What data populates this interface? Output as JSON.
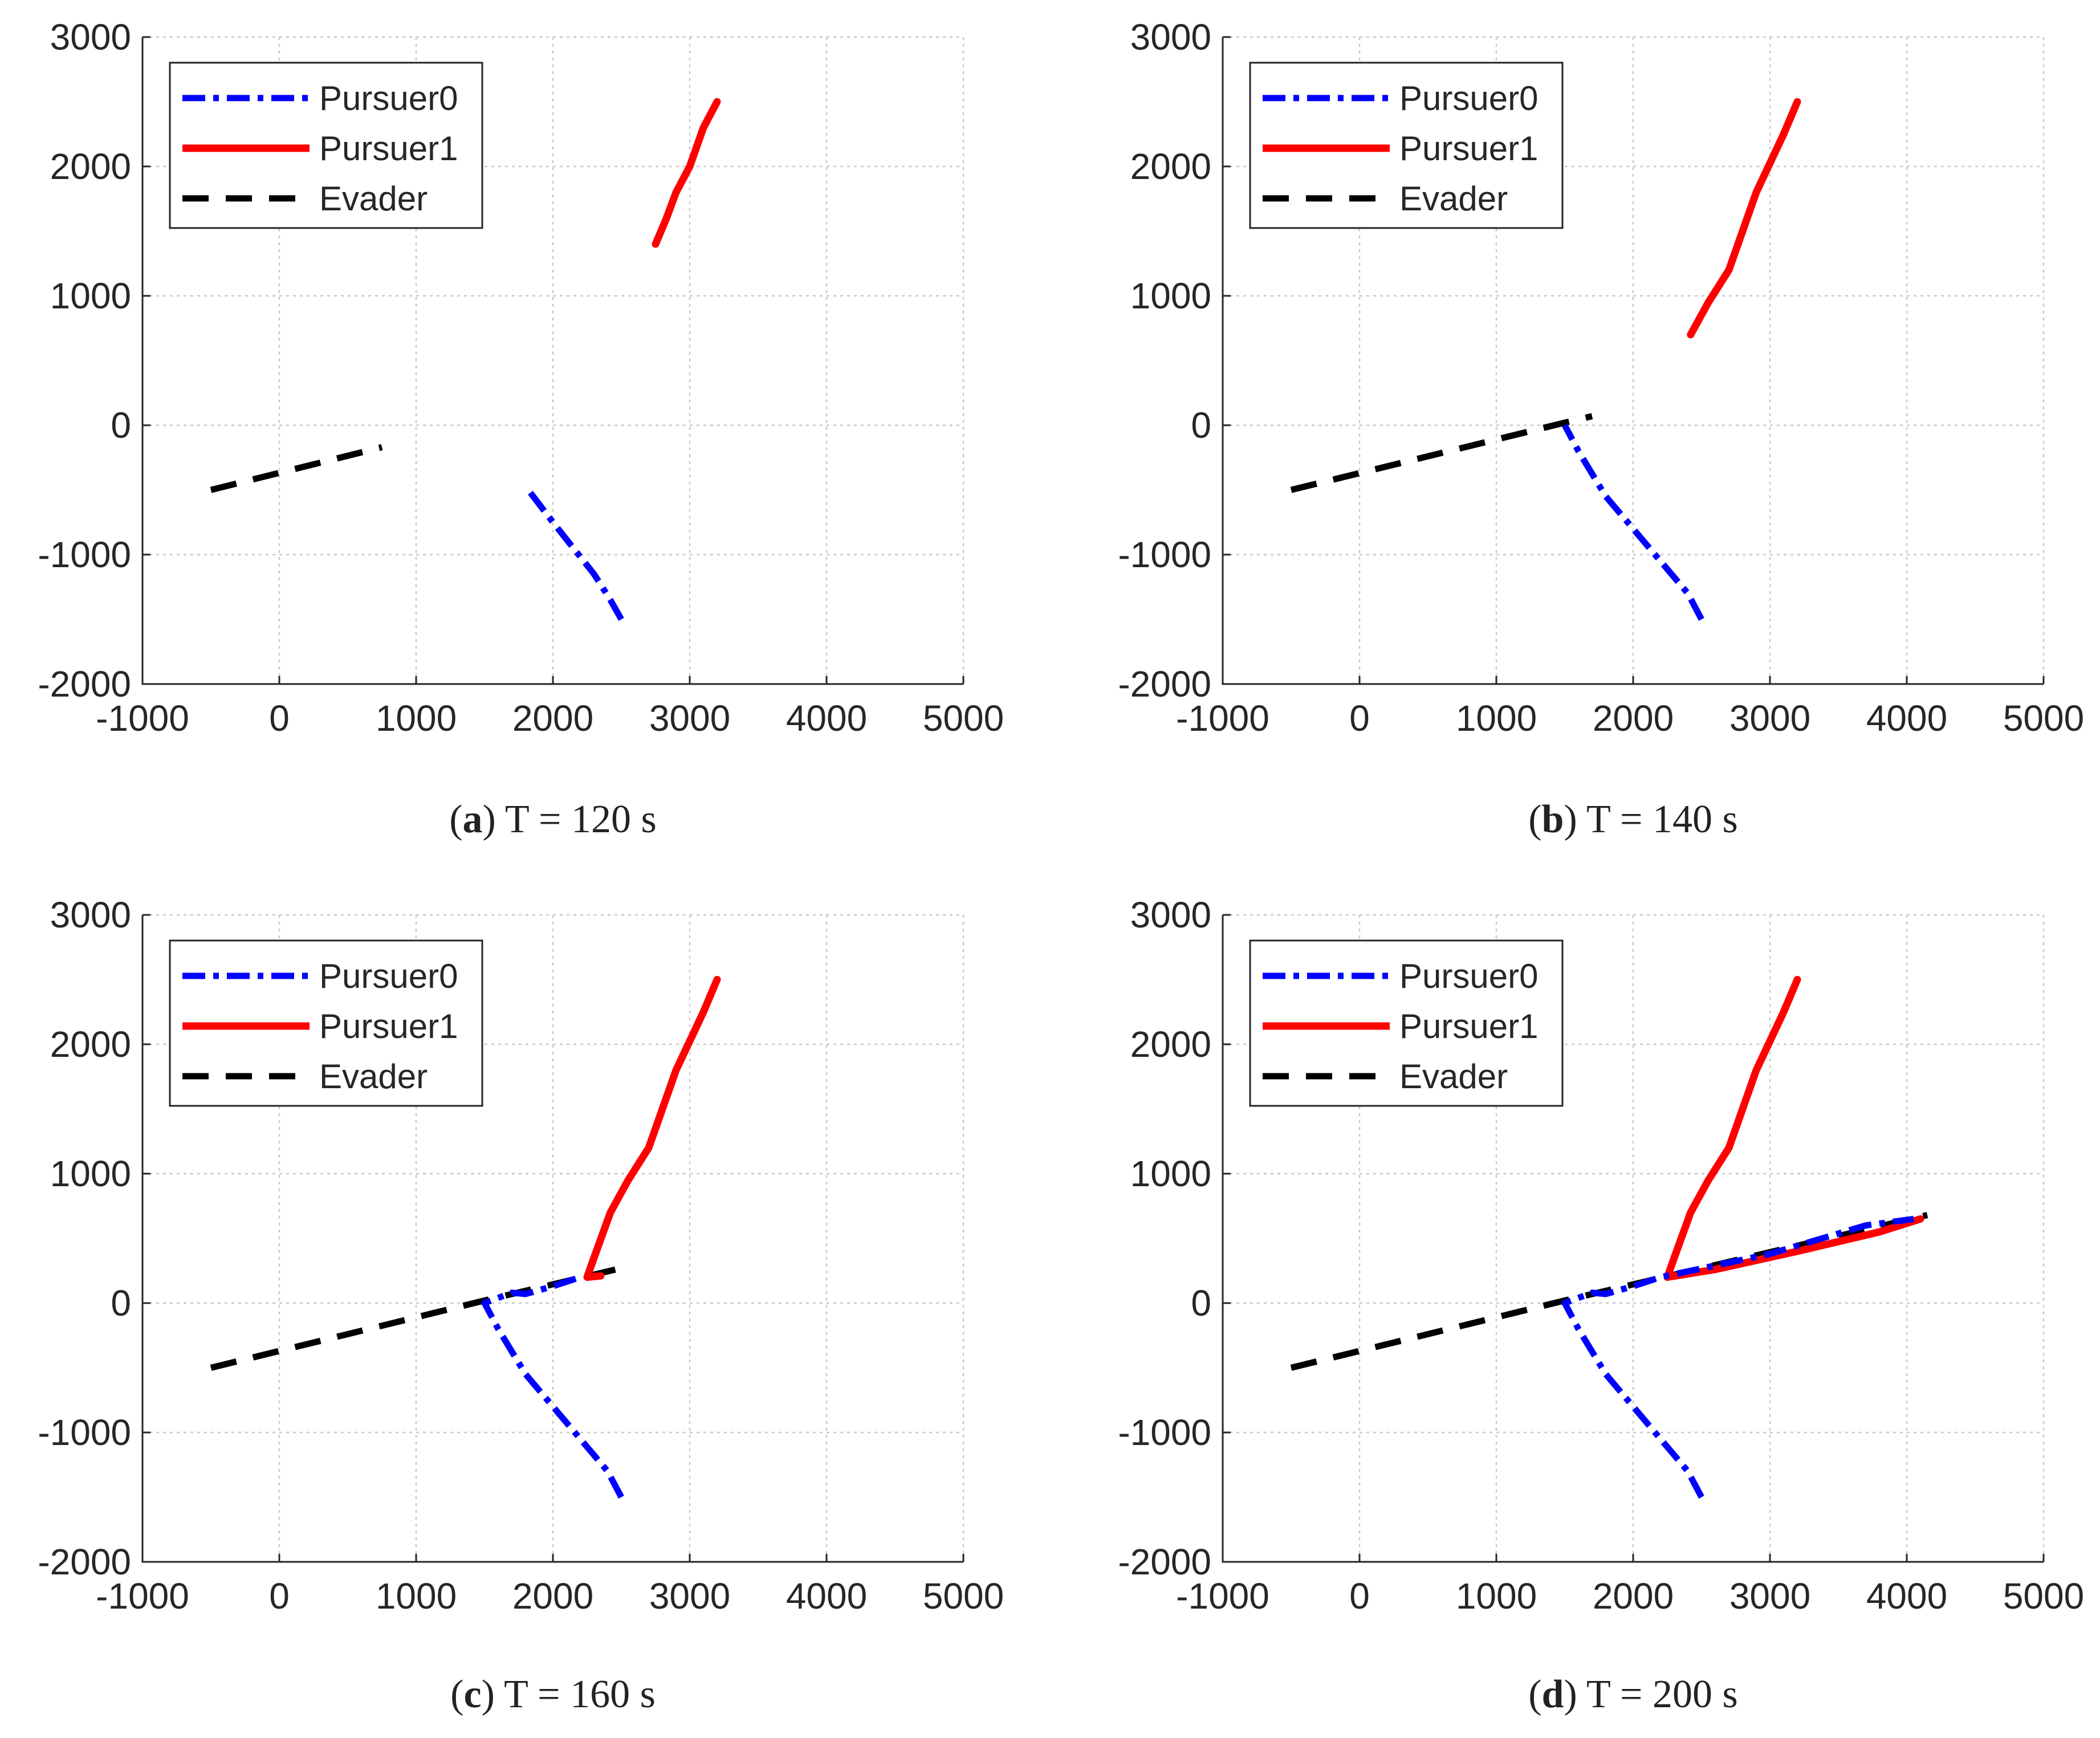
{
  "colors": {
    "pursuer0": "#0000ff",
    "pursuer1": "#ff0000",
    "evader": "#000000"
  },
  "chart_data": [
    {
      "type": "line",
      "caption": {
        "tag": "a",
        "text": "T = 120 s"
      },
      "xlim": [
        -1000,
        5000
      ],
      "ylim": [
        -2000,
        3000
      ],
      "xticks": [
        "-1000",
        "0",
        "1000",
        "2000",
        "3000",
        "4000",
        "5000"
      ],
      "yticks": [
        "-2000",
        "-1000",
        "0",
        "1000",
        "2000",
        "3000"
      ],
      "grid": true,
      "legend": {
        "location": "top-left",
        "entries": [
          "Pursuer0",
          "Pursuer1",
          "Evader"
        ]
      },
      "series": [
        {
          "name": "Pursuer0",
          "style": "dash-dot",
          "x": [
            2500,
            2420,
            2300,
            2150,
            2000,
            1820
          ],
          "y": [
            -1500,
            -1350,
            -1150,
            -950,
            -750,
            -500
          ]
        },
        {
          "name": "Pursuer1",
          "style": "solid",
          "x": [
            3200,
            3100,
            3000,
            2900,
            2830,
            2750
          ],
          "y": [
            2500,
            2300,
            2000,
            1800,
            1600,
            1400
          ]
        },
        {
          "name": "Evader",
          "style": "dashed",
          "x": [
            -500,
            750
          ],
          "y": [
            -500,
            -170
          ]
        }
      ]
    },
    {
      "type": "line",
      "caption": {
        "tag": "b",
        "text": "T = 140 s"
      },
      "xlim": [
        -1000,
        5000
      ],
      "ylim": [
        -2000,
        3000
      ],
      "xticks": [
        "-1000",
        "0",
        "1000",
        "2000",
        "3000",
        "4000",
        "5000"
      ],
      "yticks": [
        "-2000",
        "-1000",
        "0",
        "1000",
        "2000",
        "3000"
      ],
      "grid": true,
      "legend": {
        "location": "top-left",
        "entries": [
          "Pursuer0",
          "Pursuer1",
          "Evader"
        ]
      },
      "series": [
        {
          "name": "Pursuer0",
          "style": "dash-dot",
          "x": [
            2500,
            2400,
            2200,
            2000,
            1800,
            1600,
            1500
          ],
          "y": [
            -1500,
            -1300,
            -1050,
            -800,
            -550,
            -200,
            0
          ]
        },
        {
          "name": "Pursuer1",
          "style": "solid",
          "x": [
            3200,
            3100,
            2900,
            2700,
            2550,
            2420
          ],
          "y": [
            2500,
            2250,
            1800,
            1200,
            950,
            700
          ]
        },
        {
          "name": "Evader",
          "style": "dashed",
          "x": [
            -500,
            1500,
            1700
          ],
          "y": [
            -500,
            20,
            70
          ]
        }
      ]
    },
    {
      "type": "line",
      "caption": {
        "tag": "c",
        "text": "T = 160 s"
      },
      "xlim": [
        -1000,
        5000
      ],
      "ylim": [
        -2000,
        3000
      ],
      "xticks": [
        "-1000",
        "0",
        "1000",
        "2000",
        "3000",
        "4000",
        "5000"
      ],
      "yticks": [
        "-2000",
        "-1000",
        "0",
        "1000",
        "2000",
        "3000"
      ],
      "grid": true,
      "legend": {
        "location": "top-left",
        "entries": [
          "Pursuer0",
          "Pursuer1",
          "Evader"
        ]
      },
      "series": [
        {
          "name": "Pursuer0",
          "style": "dash-dot",
          "x": [
            2500,
            2400,
            2200,
            2000,
            1800,
            1600,
            1500,
            1700,
            1800,
            2000,
            2200
          ],
          "y": [
            -1500,
            -1300,
            -1050,
            -800,
            -550,
            -200,
            0,
            80,
            70,
            130,
            200
          ]
        },
        {
          "name": "Pursuer1",
          "style": "solid",
          "x": [
            3200,
            3100,
            2900,
            2700,
            2550,
            2420,
            2300,
            2250,
            2350
          ],
          "y": [
            2500,
            2250,
            1800,
            1200,
            950,
            700,
            350,
            200,
            210
          ]
        },
        {
          "name": "Evader",
          "style": "dashed",
          "x": [
            -500,
            1500,
            2500
          ],
          "y": [
            -500,
            20,
            270
          ]
        }
      ]
    },
    {
      "type": "line",
      "caption": {
        "tag": "d",
        "text": "T = 200 s"
      },
      "xlim": [
        -1000,
        5000
      ],
      "ylim": [
        -2000,
        3000
      ],
      "xticks": [
        "-1000",
        "0",
        "1000",
        "2000",
        "3000",
        "4000",
        "5000"
      ],
      "yticks": [
        "-2000",
        "-1000",
        "0",
        "1000",
        "2000",
        "3000"
      ],
      "grid": true,
      "legend": {
        "location": "top-left",
        "entries": [
          "Pursuer0",
          "Pursuer1",
          "Evader"
        ]
      },
      "series": [
        {
          "name": "Pursuer0",
          "style": "dash-dot",
          "x": [
            2500,
            2400,
            2200,
            2000,
            1800,
            1600,
            1500,
            1700,
            1800,
            2000,
            2200,
            3000,
            3700,
            4050
          ],
          "y": [
            -1500,
            -1300,
            -1050,
            -800,
            -550,
            -200,
            0,
            80,
            70,
            130,
            200,
            380,
            600,
            650
          ]
        },
        {
          "name": "Pursuer1",
          "style": "solid",
          "x": [
            3200,
            3100,
            2900,
            2700,
            2550,
            2420,
            2300,
            2250,
            2600,
            3200,
            3800,
            4100
          ],
          "y": [
            2500,
            2250,
            1800,
            1200,
            950,
            700,
            350,
            200,
            260,
            400,
            550,
            650
          ]
        },
        {
          "name": "Evader",
          "style": "dashed",
          "x": [
            -500,
            1500,
            4150
          ],
          "y": [
            -500,
            20,
            680
          ]
        }
      ]
    }
  ]
}
